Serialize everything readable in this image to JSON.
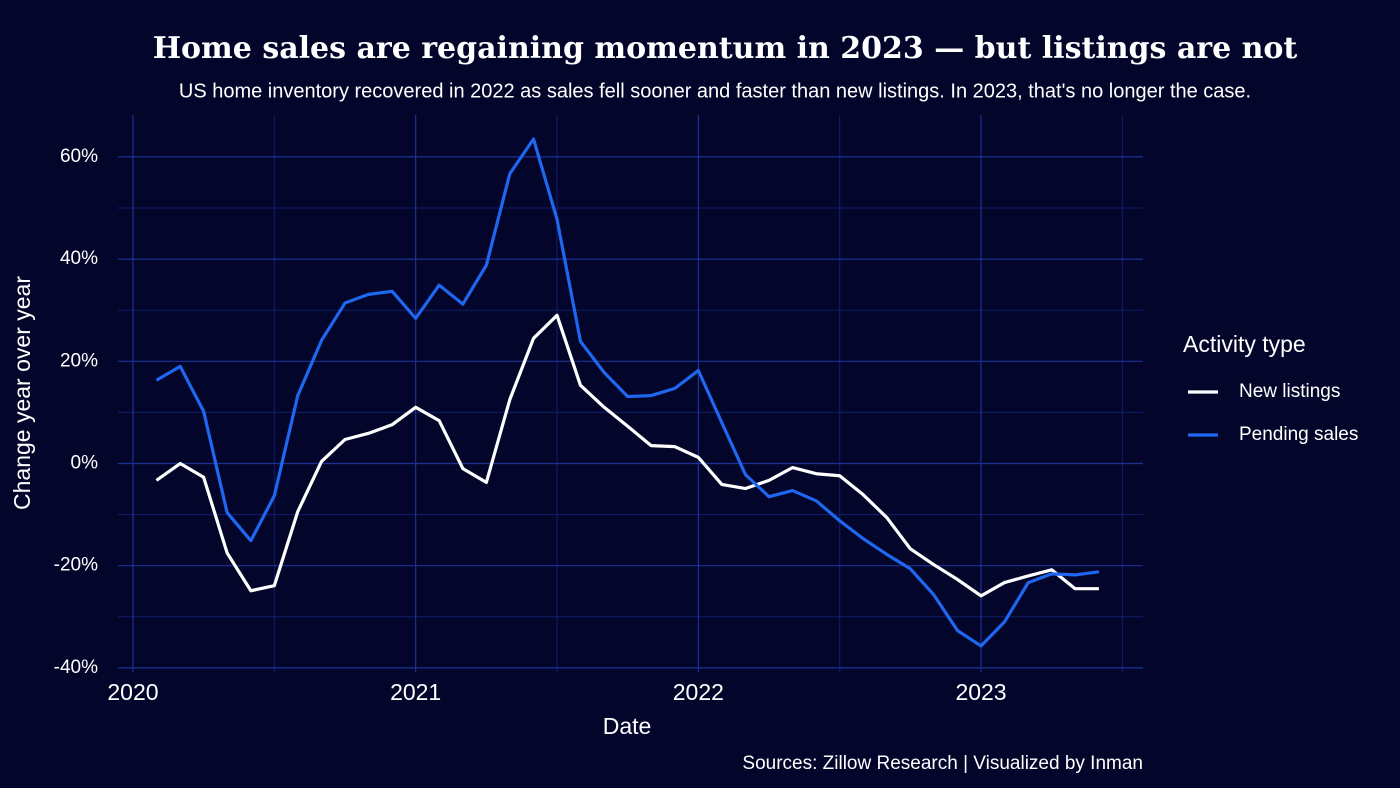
{
  "chart_data": {
    "type": "line",
    "title": "Home sales are regaining momentum in 2023 — but listings are not",
    "subtitle": "US home inventory recovered in 2022 as sales fell sooner and faster than new listings. In 2023, that's no longer the case.",
    "x_label": "Date",
    "y_label": "Change year over year",
    "caption": "Sources: Zillow Research | Visualized by Inman",
    "legend_title": "Activity type",
    "legend": "right",
    "grid": true,
    "x": [
      2020.083,
      2020.167,
      2020.25,
      2020.333,
      2020.417,
      2020.5,
      2020.583,
      2020.667,
      2020.75,
      2020.833,
      2020.917,
      2021.0,
      2021.083,
      2021.167,
      2021.25,
      2021.333,
      2021.417,
      2021.5,
      2021.583,
      2021.667,
      2021.75,
      2021.833,
      2021.917,
      2022.0,
      2022.083,
      2022.167,
      2022.25,
      2022.333,
      2022.417,
      2022.5,
      2022.583,
      2022.667,
      2022.75,
      2022.833,
      2022.917,
      2023.0,
      2023.083,
      2023.167,
      2023.25,
      2023.333,
      2023.417
    ],
    "xlim": [
      2019.947,
      2023.573
    ],
    "xticks": [
      2020,
      2021,
      2022,
      2023
    ],
    "ylim": [
      -40.8,
      68.2
    ],
    "yticks": [
      {
        "value": -40,
        "label": "-40%"
      },
      {
        "value": -20,
        "label": "-20%"
      },
      {
        "value": 0,
        "label": "0%"
      },
      {
        "value": 20,
        "label": "20%"
      },
      {
        "value": 40,
        "label": "40%"
      },
      {
        "value": 60,
        "label": "60%"
      }
    ],
    "series": [
      {
        "name": "New listings",
        "color": "#ffffff",
        "values": [
          -3.3,
          0,
          -2.7,
          -17.5,
          -24.9,
          -23.9,
          -9.4,
          0.4,
          4.7,
          5.9,
          7.6,
          11.0,
          8.4,
          -1.0,
          -3.7,
          12.5,
          24.5,
          29.0,
          15.3,
          11.0,
          7.3,
          3.5,
          3.3,
          1.2,
          -4.1,
          -4.9,
          -3.3,
          -0.8,
          -2.0,
          -2.4,
          -6.1,
          -10.6,
          -16.7,
          -19.8,
          -22.7,
          -25.9,
          -23.3,
          -22.0,
          -20.8,
          -24.5,
          -24.5
        ]
      },
      {
        "name": "Pending sales",
        "color": "#1f66f0",
        "values": [
          16.3,
          19.0,
          10.2,
          -9.6,
          -15.1,
          -6.3,
          13.3,
          24.1,
          31.4,
          33.1,
          33.7,
          28.4,
          34.9,
          31.2,
          38.8,
          56.7,
          63.5,
          47.8,
          23.9,
          17.8,
          13.1,
          13.3,
          14.7,
          18.2,
          8.0,
          -2.2,
          -6.5,
          -5.3,
          -7.3,
          -11.2,
          -14.7,
          -17.8,
          -20.6,
          -25.7,
          -32.7,
          -35.7,
          -31.0,
          -23.3,
          -21.6,
          -21.8,
          -21.2
        ]
      }
    ]
  }
}
